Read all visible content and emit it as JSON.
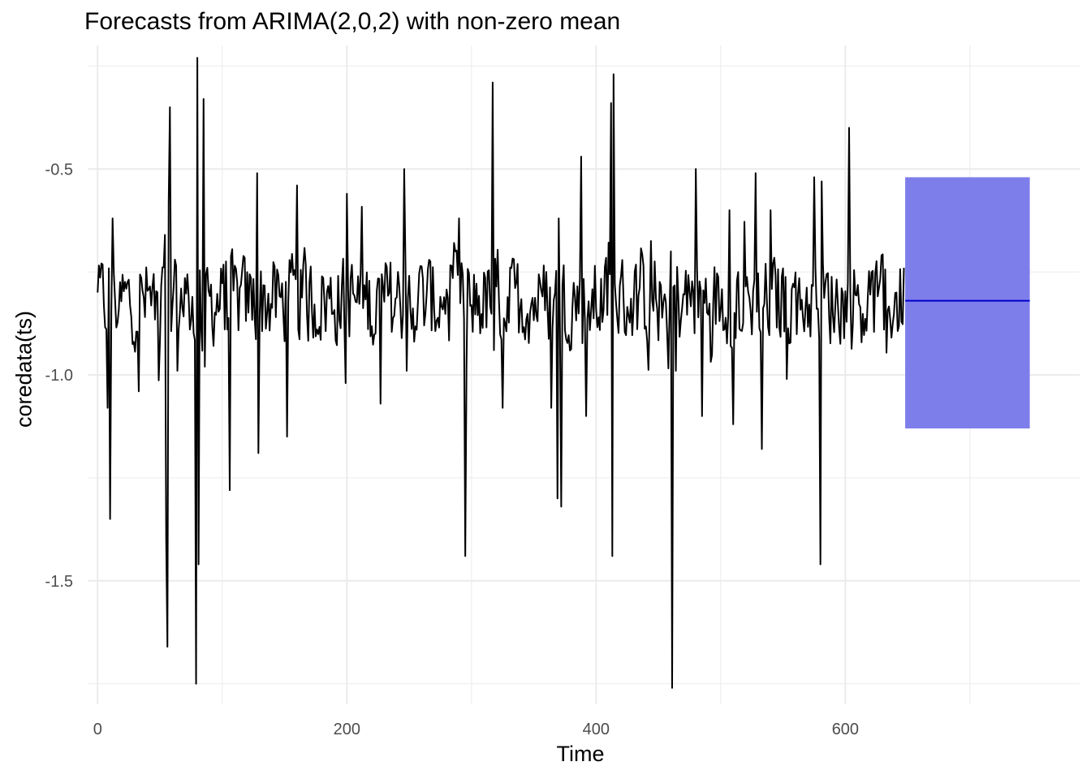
{
  "chart_data": {
    "type": "line",
    "title": "Forecasts from ARIMA(2,0,2) with non-zero mean",
    "xlabel": "Time",
    "ylabel": "coredata(ts)",
    "xlim": [
      -8,
      788
    ],
    "ylim": [
      -1.8,
      -0.2
    ],
    "x_ticks": [
      0,
      200,
      400,
      600
    ],
    "y_ticks": [
      -1.5,
      -1.0,
      -0.5
    ],
    "x_tick_labels": [
      "0",
      "200",
      "400",
      "600"
    ],
    "y_tick_labels": [
      "-1.5",
      "-1.0",
      "-0.5"
    ],
    "grid": true,
    "series_points": 648,
    "series_start_value": -0.8,
    "series_mean": -0.82,
    "series_spikes": [
      {
        "x": 8,
        "y": -1.08
      },
      {
        "x": 10,
        "y": -1.35
      },
      {
        "x": 12,
        "y": -0.62
      },
      {
        "x": 33,
        "y": -1.04
      },
      {
        "x": 54,
        "y": -0.66
      },
      {
        "x": 55,
        "y": -1.4
      },
      {
        "x": 56,
        "y": -1.66
      },
      {
        "x": 57,
        "y": -0.58
      },
      {
        "x": 58,
        "y": -0.35
      },
      {
        "x": 62,
        "y": -0.72
      },
      {
        "x": 64,
        "y": -0.99
      },
      {
        "x": 79,
        "y": -1.75
      },
      {
        "x": 80,
        "y": -0.23
      },
      {
        "x": 81,
        "y": -1.46
      },
      {
        "x": 85,
        "y": -0.33
      },
      {
        "x": 86,
        "y": -0.98
      },
      {
        "x": 106,
        "y": -1.28
      },
      {
        "x": 128,
        "y": -0.51
      },
      {
        "x": 129,
        "y": -1.19
      },
      {
        "x": 152,
        "y": -1.15
      },
      {
        "x": 160,
        "y": -0.54
      },
      {
        "x": 199,
        "y": -1.02
      },
      {
        "x": 200,
        "y": -0.56
      },
      {
        "x": 227,
        "y": -1.07
      },
      {
        "x": 246,
        "y": -0.5
      },
      {
        "x": 248,
        "y": -0.99
      },
      {
        "x": 290,
        "y": -0.62
      },
      {
        "x": 295,
        "y": -1.44
      },
      {
        "x": 296,
        "y": -0.98
      },
      {
        "x": 317,
        "y": -0.29
      },
      {
        "x": 318,
        "y": -0.94
      },
      {
        "x": 325,
        "y": -1.08
      },
      {
        "x": 364,
        "y": -1.08
      },
      {
        "x": 369,
        "y": -1.3
      },
      {
        "x": 370,
        "y": -0.62
      },
      {
        "x": 372,
        "y": -1.32
      },
      {
        "x": 388,
        "y": -0.47
      },
      {
        "x": 392,
        "y": -1.1
      },
      {
        "x": 412,
        "y": -0.34
      },
      {
        "x": 413,
        "y": -1.44
      },
      {
        "x": 414,
        "y": -0.27
      },
      {
        "x": 460,
        "y": -0.7
      },
      {
        "x": 461,
        "y": -1.76
      },
      {
        "x": 464,
        "y": -0.99
      },
      {
        "x": 480,
        "y": -0.5
      },
      {
        "x": 485,
        "y": -1.1
      },
      {
        "x": 507,
        "y": -0.6
      },
      {
        "x": 510,
        "y": -1.12
      },
      {
        "x": 528,
        "y": -0.51
      },
      {
        "x": 533,
        "y": -1.18
      },
      {
        "x": 540,
        "y": -0.6
      },
      {
        "x": 553,
        "y": -1.01
      },
      {
        "x": 575,
        "y": -0.52
      },
      {
        "x": 580,
        "y": -1.46
      },
      {
        "x": 581,
        "y": -0.53
      },
      {
        "x": 603,
        "y": -0.4
      },
      {
        "x": 604,
        "y": -0.8
      },
      {
        "x": 631,
        "y": -0.89
      },
      {
        "x": 647,
        "y": -0.74
      }
    ],
    "forecast": {
      "x_start": 648,
      "x_end": 748,
      "mean": -0.82,
      "lower": -1.13,
      "upper": -0.52,
      "line_color": "#0000CC",
      "band_color": "#7E7EEB"
    },
    "line_color": "#000000",
    "grid_color": "#EBEBEB"
  }
}
